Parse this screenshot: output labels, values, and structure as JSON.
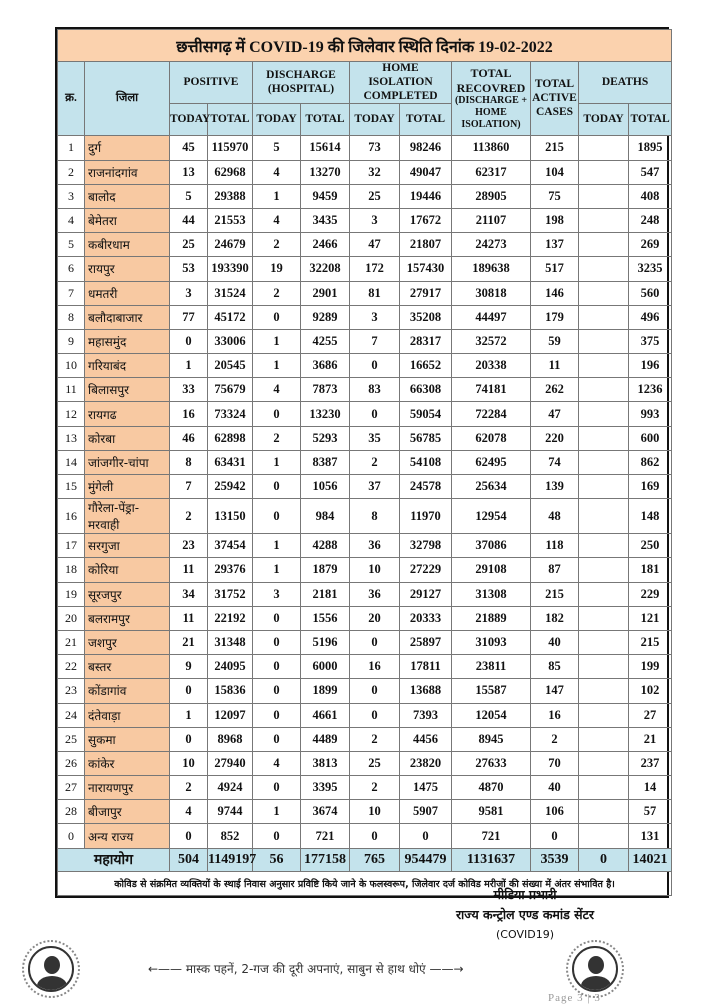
{
  "title": "छत्तीसगढ़ में COVID-19 की जिलेवार स्थिति दिनांक 19-02-2022",
  "headers": {
    "sr": "क्र.",
    "district": "जिला",
    "positive": "POSITIVE",
    "discharge": "DISCHARGE (HOSPITAL)",
    "home_isolation": "HOME ISOLATION COMPLETED",
    "total_recovered": "TOTAL RECOVRED",
    "total_recovered_sub": "(DISCHARGE + HOME ISOLATION)",
    "total_active": "TOTAL ACTIVE CASES",
    "deaths": "DEATHS",
    "today": "TODAY",
    "total": "TOTAL"
  },
  "rows": [
    [
      "1",
      "दुर्ग",
      "45",
      "115970",
      "5",
      "15614",
      "73",
      "98246",
      "113860",
      "215",
      "",
      "1895"
    ],
    [
      "2",
      "राजनांदगांव",
      "13",
      "62968",
      "4",
      "13270",
      "32",
      "49047",
      "62317",
      "104",
      "",
      "547"
    ],
    [
      "3",
      "बालोद",
      "5",
      "29388",
      "1",
      "9459",
      "25",
      "19446",
      "28905",
      "75",
      "",
      "408"
    ],
    [
      "4",
      "बेमेतरा",
      "44",
      "21553",
      "4",
      "3435",
      "3",
      "17672",
      "21107",
      "198",
      "",
      "248"
    ],
    [
      "5",
      "कबीरधाम",
      "25",
      "24679",
      "2",
      "2466",
      "47",
      "21807",
      "24273",
      "137",
      "",
      "269"
    ],
    [
      "6",
      "रायपुर",
      "53",
      "193390",
      "19",
      "32208",
      "172",
      "157430",
      "189638",
      "517",
      "",
      "3235"
    ],
    [
      "7",
      "धमतरी",
      "3",
      "31524",
      "2",
      "2901",
      "81",
      "27917",
      "30818",
      "146",
      "",
      "560"
    ],
    [
      "8",
      "बलौदाबाजार",
      "77",
      "45172",
      "0",
      "9289",
      "3",
      "35208",
      "44497",
      "179",
      "",
      "496"
    ],
    [
      "9",
      "महासमुंद",
      "0",
      "33006",
      "1",
      "4255",
      "7",
      "28317",
      "32572",
      "59",
      "",
      "375"
    ],
    [
      "10",
      "गरियाबंद",
      "1",
      "20545",
      "1",
      "3686",
      "0",
      "16652",
      "20338",
      "11",
      "",
      "196"
    ],
    [
      "11",
      "बिलासपुर",
      "33",
      "75679",
      "4",
      "7873",
      "83",
      "66308",
      "74181",
      "262",
      "",
      "1236"
    ],
    [
      "12",
      "रायगढ",
      "16",
      "73324",
      "0",
      "13230",
      "0",
      "59054",
      "72284",
      "47",
      "",
      "993"
    ],
    [
      "13",
      "कोरबा",
      "46",
      "62898",
      "2",
      "5293",
      "35",
      "56785",
      "62078",
      "220",
      "",
      "600"
    ],
    [
      "14",
      "जांजगीर-चांपा",
      "8",
      "63431",
      "1",
      "8387",
      "2",
      "54108",
      "62495",
      "74",
      "",
      "862"
    ],
    [
      "15",
      "मुंगेली",
      "7",
      "25942",
      "0",
      "1056",
      "37",
      "24578",
      "25634",
      "139",
      "",
      "169"
    ],
    [
      "16",
      "गौरेला-पेंड्रा-मरवाही",
      "2",
      "13150",
      "0",
      "984",
      "8",
      "11970",
      "12954",
      "48",
      "",
      "148"
    ],
    [
      "17",
      "सरगुजा",
      "23",
      "37454",
      "1",
      "4288",
      "36",
      "32798",
      "37086",
      "118",
      "",
      "250"
    ],
    [
      "18",
      "कोरिया",
      "11",
      "29376",
      "1",
      "1879",
      "10",
      "27229",
      "29108",
      "87",
      "",
      "181"
    ],
    [
      "19",
      "सूरजपुर",
      "34",
      "31752",
      "3",
      "2181",
      "36",
      "29127",
      "31308",
      "215",
      "",
      "229"
    ],
    [
      "20",
      "बलरामपुर",
      "11",
      "22192",
      "0",
      "1556",
      "20",
      "20333",
      "21889",
      "182",
      "",
      "121"
    ],
    [
      "21",
      "जशपुर",
      "21",
      "31348",
      "0",
      "5196",
      "0",
      "25897",
      "31093",
      "40",
      "",
      "215"
    ],
    [
      "22",
      "बस्तर",
      "9",
      "24095",
      "0",
      "6000",
      "16",
      "17811",
      "23811",
      "85",
      "",
      "199"
    ],
    [
      "23",
      "कोंडागांव",
      "0",
      "15836",
      "0",
      "1899",
      "0",
      "13688",
      "15587",
      "147",
      "",
      "102"
    ],
    [
      "24",
      "दंतेवाड़ा",
      "1",
      "12097",
      "0",
      "4661",
      "0",
      "7393",
      "12054",
      "16",
      "",
      "27"
    ],
    [
      "25",
      "सुकमा",
      "0",
      "8968",
      "0",
      "4489",
      "2",
      "4456",
      "8945",
      "2",
      "",
      "21"
    ],
    [
      "26",
      "कांकेर",
      "10",
      "27940",
      "4",
      "3813",
      "25",
      "23820",
      "27633",
      "70",
      "",
      "237"
    ],
    [
      "27",
      "नारायणपुर",
      "2",
      "4924",
      "0",
      "3395",
      "2",
      "1475",
      "4870",
      "40",
      "",
      "14"
    ],
    [
      "28",
      "बीजापुर",
      "4",
      "9744",
      "1",
      "3674",
      "10",
      "5907",
      "9581",
      "106",
      "",
      "57"
    ],
    [
      "0",
      "अन्य राज्य",
      "0",
      "852",
      "0",
      "721",
      "0",
      "0",
      "721",
      "0",
      "",
      "131"
    ]
  ],
  "total": {
    "label": "महायोग",
    "values": [
      "504",
      "1149197",
      "56",
      "177158",
      "765",
      "954479",
      "1131637",
      "3539",
      "0",
      "14021"
    ]
  },
  "note": "कोविड से संक्रमित व्यक्तियों के स्थाई निवास अनुसार प्रविष्टि किये जाने के फलस्वरूप, जिलेवार दर्ज कोविड मरीजों की संख्या में अंतर संभावित है।",
  "signature": {
    "line1": "मीडिया प्रभारी",
    "line2": "राज्य कन्ट्रोल एण्ड कमांड सेंटर",
    "line3": "(COVID19)"
  },
  "slogan": "←—— मास्क पहनें, 2-गज की दूरी अपनाएं, साबुन से हाथ धोएं ——→",
  "page": "Page 3 | 3",
  "colors": {
    "title_bg": "#fbd2ae",
    "header_bg": "#c4e3ec",
    "district_bg": "#f8c9a2"
  }
}
